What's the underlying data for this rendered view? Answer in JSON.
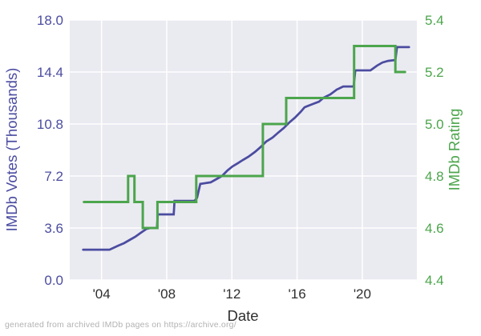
{
  "figure": {
    "caption": "generated from archived IMDb pages on https://archive.org/"
  },
  "chart_data": {
    "type": "line",
    "title": "",
    "xlabel": "Date",
    "ylabel_left": "IMDb Votes (Thousands)",
    "ylabel_right": "IMDb Rating",
    "grid": true,
    "legend": "none",
    "plot_background": "#EAEAF1",
    "gridline_color": "#ffffff",
    "x_axis": {
      "min": 2002.05,
      "max": 2023.35,
      "color": "#2f2f2f",
      "ticks": [
        {
          "value": 2004,
          "label": "'04"
        },
        {
          "value": 2008,
          "label": "'08"
        },
        {
          "value": 2012,
          "label": "'12"
        },
        {
          "value": 2016,
          "label": "'16"
        },
        {
          "value": 2020,
          "label": "'20"
        }
      ]
    },
    "y_axis_left": {
      "min": 0.0,
      "max": 18.0,
      "color": "#4B4CA0",
      "ticks": [
        {
          "value": 0.0,
          "label": "0.0"
        },
        {
          "value": 3.6,
          "label": "3.6"
        },
        {
          "value": 7.2,
          "label": "7.2"
        },
        {
          "value": 10.8,
          "label": "10.8"
        },
        {
          "value": 14.4,
          "label": "14.4"
        },
        {
          "value": 18.0,
          "label": "18.0"
        }
      ]
    },
    "y_axis_right": {
      "min": 4.4,
      "max": 5.4,
      "color": "#4CA54C",
      "ticks": [
        {
          "value": 4.4,
          "label": "4.4"
        },
        {
          "value": 4.6,
          "label": "4.6"
        },
        {
          "value": 4.8,
          "label": "4.8"
        },
        {
          "value": 5.0,
          "label": "5.0"
        },
        {
          "value": 5.2,
          "label": "5.2"
        },
        {
          "value": 5.4,
          "label": "5.4"
        }
      ]
    },
    "series": [
      {
        "name": "imdb-votes-thousands",
        "axis": "left",
        "color": "#4B4CA0",
        "stroke_width": 2.75,
        "points": [
          [
            2002.87,
            2.1
          ],
          [
            2004.49,
            2.1
          ],
          [
            2005.03,
            2.38
          ],
          [
            2005.38,
            2.55
          ],
          [
            2005.72,
            2.77
          ],
          [
            2006.07,
            2.99
          ],
          [
            2006.41,
            3.27
          ],
          [
            2006.76,
            3.54
          ],
          [
            2007.0,
            3.6
          ],
          [
            2007.4,
            3.6
          ],
          [
            2007.45,
            4.54
          ],
          [
            2008.43,
            4.54
          ],
          [
            2008.48,
            5.48
          ],
          [
            2009.71,
            5.48
          ],
          [
            2009.86,
            5.7
          ],
          [
            2010.06,
            6.65
          ],
          [
            2010.7,
            6.76
          ],
          [
            2011.04,
            6.98
          ],
          [
            2011.39,
            7.2
          ],
          [
            2011.73,
            7.59
          ],
          [
            2012.03,
            7.86
          ],
          [
            2012.37,
            8.09
          ],
          [
            2012.67,
            8.31
          ],
          [
            2013.01,
            8.53
          ],
          [
            2013.41,
            8.86
          ],
          [
            2013.75,
            9.19
          ],
          [
            2014.1,
            9.58
          ],
          [
            2014.49,
            9.86
          ],
          [
            2014.83,
            10.19
          ],
          [
            2015.18,
            10.52
          ],
          [
            2015.53,
            10.91
          ],
          [
            2015.87,
            11.24
          ],
          [
            2016.21,
            11.63
          ],
          [
            2016.46,
            11.96
          ],
          [
            2016.95,
            12.18
          ],
          [
            2017.35,
            12.35
          ],
          [
            2017.64,
            12.63
          ],
          [
            2018.04,
            12.85
          ],
          [
            2018.43,
            13.18
          ],
          [
            2018.83,
            13.4
          ],
          [
            2019.47,
            13.4
          ],
          [
            2019.57,
            14.51
          ],
          [
            2020.5,
            14.51
          ],
          [
            2020.9,
            14.84
          ],
          [
            2021.24,
            15.06
          ],
          [
            2021.59,
            15.17
          ],
          [
            2022.03,
            15.23
          ],
          [
            2022.13,
            16.12
          ],
          [
            2022.87,
            16.12
          ]
        ]
      },
      {
        "name": "imdb-rating",
        "axis": "right",
        "color": "#4CA54C",
        "stroke_width": 3,
        "points": [
          [
            2002.92,
            4.7
          ],
          [
            2005.63,
            4.7
          ],
          [
            2005.63,
            4.8
          ],
          [
            2006.02,
            4.8
          ],
          [
            2006.02,
            4.7
          ],
          [
            2006.53,
            4.7
          ],
          [
            2006.53,
            4.6
          ],
          [
            2007.43,
            4.6
          ],
          [
            2007.43,
            4.7
          ],
          [
            2009.81,
            4.7
          ],
          [
            2009.81,
            4.8
          ],
          [
            2013.9,
            4.8
          ],
          [
            2013.9,
            5.0
          ],
          [
            2015.33,
            5.0
          ],
          [
            2015.33,
            5.1
          ],
          [
            2019.5,
            5.1
          ],
          [
            2019.5,
            5.3
          ],
          [
            2022.03,
            5.3
          ],
          [
            2022.03,
            5.2
          ],
          [
            2022.62,
            5.2
          ]
        ]
      }
    ]
  }
}
